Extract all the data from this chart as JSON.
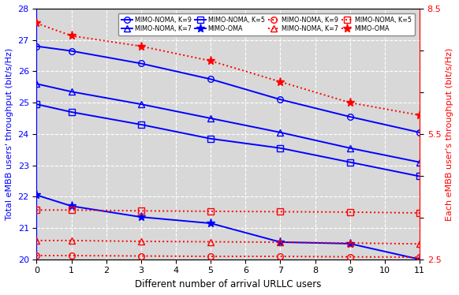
{
  "x": [
    0,
    1,
    3,
    5,
    7,
    9,
    11
  ],
  "blue_K9": [
    26.8,
    26.65,
    26.25,
    25.75,
    25.1,
    24.55,
    24.05
  ],
  "blue_K7": [
    25.6,
    25.35,
    24.95,
    24.5,
    24.05,
    23.55,
    23.1
  ],
  "blue_K5": [
    24.95,
    24.7,
    24.3,
    23.85,
    23.55,
    23.1,
    22.65
  ],
  "blue_OMA": [
    22.05,
    21.7,
    21.35,
    21.15,
    20.55,
    20.5,
    20.0
  ],
  "red_K9": [
    2.59,
    2.59,
    2.58,
    2.57,
    2.57,
    2.56,
    2.55
  ],
  "red_K7": [
    2.95,
    2.95,
    2.93,
    2.92,
    2.91,
    2.89,
    2.87
  ],
  "red_K5": [
    3.68,
    3.68,
    3.66,
    3.65,
    3.64,
    3.63,
    3.61
  ],
  "red_OMA": [
    8.15,
    7.85,
    7.6,
    7.25,
    6.75,
    6.25,
    5.95
  ],
  "xlim": [
    0,
    11
  ],
  "ylim_left": [
    20,
    28
  ],
  "ylim_right": [
    2.5,
    8.5
  ],
  "xticks": [
    0,
    1,
    2,
    3,
    4,
    5,
    6,
    7,
    8,
    9,
    10,
    11
  ],
  "yticks_left": [
    20,
    21,
    22,
    23,
    24,
    25,
    26,
    27,
    28
  ],
  "yticks_right_vals": [
    2.5,
    3.5,
    4.5,
    5.5,
    6.5,
    7.5,
    8.5
  ],
  "yticks_right_labels": [
    "2.5",
    "",
    "",
    "5.5",
    "",
    "",
    "8.5"
  ],
  "xlabel": "Different number of arrival URLLC users",
  "ylabel_left": "Total eMBB users' throughput (bit/s/Hz)",
  "ylabel_right": "Each eMBB user's throughput (bit/s/Hz)",
  "blue_color": "#0000FF",
  "red_color": "#FF0000",
  "bg_color": "#D8D8D8",
  "legend_labels_blue": [
    "MIMO-NOMA, K=9",
    "MIMO-NOMA, K=7",
    "MIMO-NOMA, K=5",
    "MIMO-OMA"
  ],
  "legend_labels_red": [
    "MIMO-NOMA, K=9",
    "MIMO-NOMA, K=7",
    "MIMO-NOMA, K=5",
    "MIMO-OMA"
  ]
}
